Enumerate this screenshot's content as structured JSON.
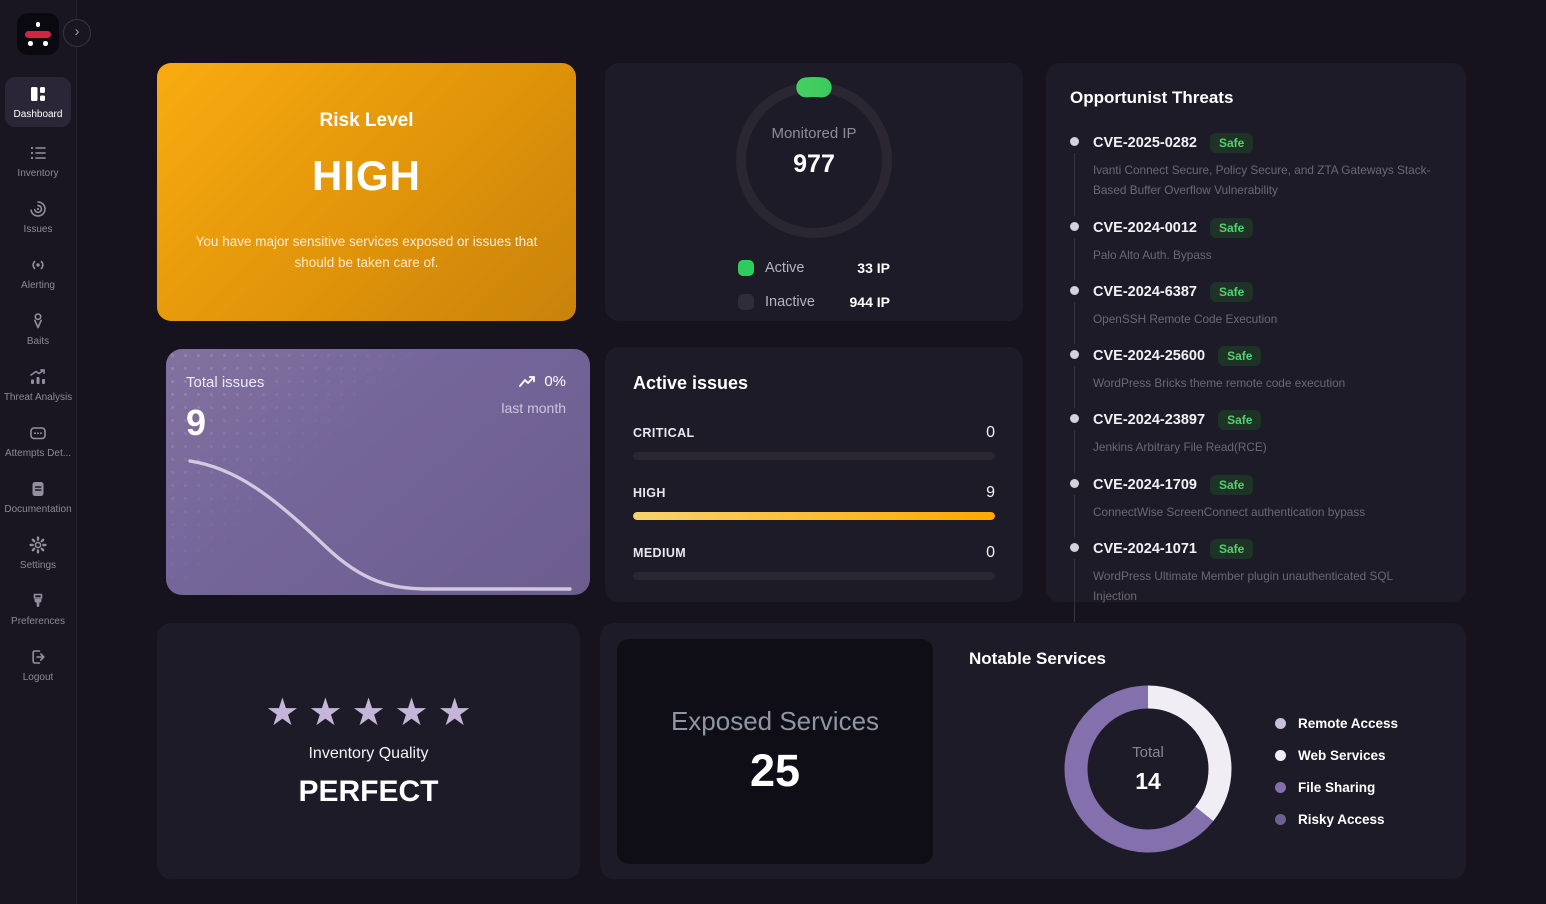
{
  "sidebar": {
    "collapse_label": "›",
    "items": [
      {
        "label": "Dashboard",
        "active": true
      },
      {
        "label": "Inventory",
        "active": false
      },
      {
        "label": "Issues",
        "active": false
      },
      {
        "label": "Alerting",
        "active": false
      },
      {
        "label": "Baits",
        "active": false
      },
      {
        "label": "Threat Analysis",
        "active": false
      },
      {
        "label": "Attempts Det...",
        "active": false
      },
      {
        "label": "Documentation",
        "active": false
      },
      {
        "label": "Settings",
        "active": false
      },
      {
        "label": "Preferences",
        "active": false
      },
      {
        "label": "Logout",
        "active": false
      }
    ]
  },
  "risk_card": {
    "title": "Risk Level",
    "level": "HIGH",
    "description": "You have major sensitive services exposed or issues that should be taken care of."
  },
  "monitored_ip": {
    "label": "Monitored IP",
    "value": "977",
    "legend": [
      {
        "label": "Active",
        "value": "33 IP",
        "color": "#2ecc5e"
      },
      {
        "label": "Inactive",
        "value": "944 IP",
        "color": "#302c3b"
      }
    ]
  },
  "total_issues": {
    "title": "Total issues",
    "value": "9",
    "trend_value": "0%",
    "trend_period": "last month"
  },
  "active_issues": {
    "title": "Active issues",
    "rows": [
      {
        "label": "CRITICAL",
        "value": "0",
        "percent": 0
      },
      {
        "label": "HIGH",
        "value": "9",
        "percent": 100
      },
      {
        "label": "MEDIUM",
        "value": "0",
        "percent": 0
      }
    ]
  },
  "opportunist_threats": {
    "title": "Opportunist Threats",
    "items": [
      {
        "id": "CVE-2025-0282",
        "status": "Safe",
        "description": "Ivanti Connect Secure, Policy Secure, and ZTA Gateways Stack-Based Buffer Overflow Vulnerability"
      },
      {
        "id": "CVE-2024-0012",
        "status": "Safe",
        "description": "Palo Alto Auth. Bypass"
      },
      {
        "id": "CVE-2024-6387",
        "status": "Safe",
        "description": "OpenSSH Remote Code Execution"
      },
      {
        "id": "CVE-2024-25600",
        "status": "Safe",
        "description": "WordPress Bricks theme remote code execution"
      },
      {
        "id": "CVE-2024-23897",
        "status": "Safe",
        "description": "Jenkins Arbitrary File Read(RCE)"
      },
      {
        "id": "CVE-2024-1709",
        "status": "Safe",
        "description": "ConnectWise ScreenConnect authentication bypass"
      },
      {
        "id": "CVE-2024-1071",
        "status": "Safe",
        "description": "WordPress Ultimate Member plugin unauthenticated SQL Injection"
      }
    ]
  },
  "inventory_quality": {
    "stars": "★★★★★",
    "stars_count": 5,
    "label": "Inventory Quality",
    "rating": "PERFECT"
  },
  "exposed_services": {
    "label": "Exposed Services",
    "value": "25"
  },
  "notable_services": {
    "title": "Notable Services",
    "center_label": "Total",
    "center_value": "14",
    "legend": [
      {
        "label": "Remote Access",
        "color": "#c9bedb",
        "value": 0
      },
      {
        "label": "Web Services",
        "color": "#f0edf5",
        "value": 5
      },
      {
        "label": "File Sharing",
        "color": "#8370ac",
        "value": 9
      },
      {
        "label": "Risky Access",
        "color": "#6f6094",
        "value": 0
      }
    ]
  },
  "chart_data": [
    {
      "id": "monitored-ip",
      "type": "pie",
      "title": "Monitored IP",
      "categories": [
        "Active",
        "Inactive"
      ],
      "values": [
        33,
        944
      ],
      "center_total": 977,
      "colors": [
        "#2ecc5e",
        "#2a2733"
      ],
      "legend_position": "bottom"
    },
    {
      "id": "total-issues-trend",
      "type": "line",
      "title": "Total issues",
      "values_estimated": [
        9,
        8,
        6,
        3,
        1,
        0,
        0,
        0
      ],
      "trend": "0% vs last month",
      "axes": "hidden"
    },
    {
      "id": "active-issues",
      "type": "bar",
      "orientation": "horizontal",
      "categories": [
        "CRITICAL",
        "HIGH",
        "MEDIUM"
      ],
      "values": [
        0,
        9,
        0
      ],
      "xlim": [
        0,
        9
      ]
    },
    {
      "id": "notable-services",
      "type": "pie",
      "title": "Notable Services",
      "categories": [
        "Remote Access",
        "Web Services",
        "File Sharing",
        "Risky Access"
      ],
      "values_estimated": [
        0,
        5,
        9,
        0
      ],
      "center_total": 14,
      "colors": [
        "#c9bedb",
        "#f0edf5",
        "#8370ac",
        "#6f6094"
      ],
      "legend_position": "right"
    }
  ]
}
